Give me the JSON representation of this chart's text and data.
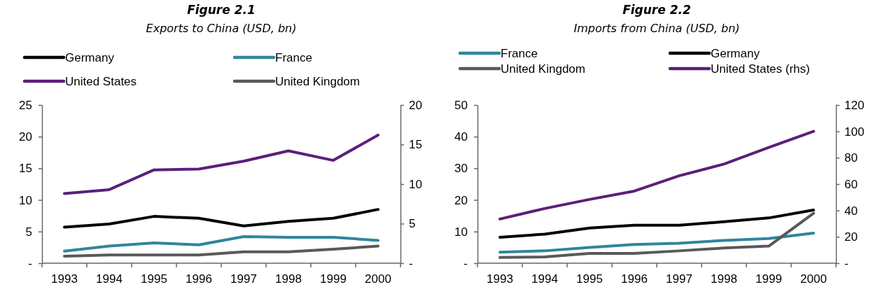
{
  "chart_data": [
    {
      "type": "line",
      "title": "Figure 2.1",
      "subtitle": "Exports to China (USD, bn)",
      "categories": [
        "1993",
        "1994",
        "1995",
        "1996",
        "1997",
        "1998",
        "1999",
        "2000"
      ],
      "legend": "top",
      "grid": false,
      "line_style": "solid",
      "marker": "none",
      "ylim": [
        0,
        25
      ],
      "yticks": [
        {
          "value": 0,
          "label": "-"
        },
        5,
        10,
        15,
        20,
        25
      ],
      "y2lim": [
        0,
        20
      ],
      "y2ticks": [
        {
          "value": 0,
          "label": "-"
        },
        5,
        10,
        15,
        20
      ],
      "series": [
        {
          "name": "Germany",
          "color": "#000000",
          "values": [
            5.7,
            6.2,
            7.4,
            7.1,
            5.9,
            6.6,
            7.1,
            8.5
          ]
        },
        {
          "name": "France",
          "color": "#31859c",
          "values": [
            1.9,
            2.7,
            3.2,
            2.9,
            4.2,
            4.1,
            4.1,
            3.6
          ]
        },
        {
          "name": "United States",
          "color": "#5b1f7a",
          "axis": "y2",
          "values": [
            8.8,
            9.3,
            11.8,
            11.9,
            12.9,
            14.2,
            13.0,
            16.2
          ]
        },
        {
          "name": "United Kingdom",
          "color": "#595959",
          "values": [
            1.1,
            1.3,
            1.3,
            1.3,
            1.8,
            1.8,
            2.2,
            2.7
          ]
        }
      ]
    },
    {
      "type": "line",
      "title": "Figure 2.2",
      "subtitle": "Imports from China (USD, bn)",
      "categories": [
        "1993",
        "1994",
        "1995",
        "1996",
        "1997",
        "1998",
        "1999",
        "2000"
      ],
      "legend": "top",
      "grid": false,
      "line_style": "solid",
      "marker": "none",
      "ylim": [
        0,
        50
      ],
      "yticks": [
        {
          "value": 0,
          "label": "-"
        },
        10,
        20,
        30,
        40,
        50
      ],
      "y2lim": [
        0,
        120
      ],
      "y2ticks": [
        {
          "value": 0,
          "label": "-"
        },
        20,
        40,
        60,
        80,
        100,
        120
      ],
      "series": [
        {
          "name": "France",
          "color": "#31859c",
          "values": [
            3.5,
            3.9,
            5.0,
            5.9,
            6.3,
            7.2,
            7.8,
            9.5
          ]
        },
        {
          "name": "Germany",
          "color": "#000000",
          "values": [
            8.2,
            9.2,
            11.1,
            12.0,
            12.0,
            13.1,
            14.3,
            16.8
          ]
        },
        {
          "name": "United Kingdom",
          "color": "#595959",
          "values": [
            1.8,
            2.0,
            3.1,
            3.1,
            3.9,
            4.8,
            5.4,
            15.8
          ]
        },
        {
          "name": "United States (rhs)",
          "color": "#5b1f7a",
          "axis": "y2",
          "values": [
            33.5,
            41.5,
            48.4,
            54.7,
            66.3,
            75.2,
            87.8,
            100
          ]
        }
      ]
    }
  ]
}
